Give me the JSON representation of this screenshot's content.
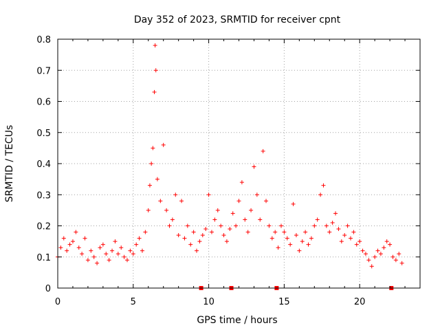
{
  "chart_data": {
    "type": "scatter",
    "title": "Day 352 of 2023, SRMTID for receiver cpnt",
    "xlabel": "GPS time / hours",
    "ylabel": "SRMTID / TECUs",
    "xlim": [
      0,
      24
    ],
    "ylim": [
      0,
      0.8
    ],
    "xticks": [
      "0",
      "5",
      "10",
      "15",
      "20"
    ],
    "xtick_values": [
      0,
      5,
      10,
      15,
      20
    ],
    "yticks": [
      "0",
      "0.1",
      "0.2",
      "0.3",
      "0.4",
      "0.5",
      "0.6",
      "0.7",
      "0.8"
    ],
    "ytick_values": [
      0,
      0.1,
      0.2,
      0.3,
      0.4,
      0.5,
      0.6,
      0.7,
      0.8
    ],
    "grid": true,
    "marker": "+",
    "color": "#ff0000",
    "series": [
      {
        "name": "SRMTID",
        "x": [
          0.0,
          0.2,
          0.4,
          0.6,
          0.8,
          1.0,
          1.2,
          1.4,
          1.6,
          1.8,
          2.0,
          2.2,
          2.4,
          2.6,
          2.8,
          3.0,
          3.2,
          3.4,
          3.6,
          3.8,
          4.0,
          4.2,
          4.4,
          4.6,
          4.8,
          5.0,
          5.2,
          5.4,
          5.6,
          5.8,
          6.0,
          6.1,
          6.2,
          6.3,
          6.4,
          6.45,
          6.5,
          6.6,
          6.8,
          7.0,
          7.2,
          7.4,
          7.6,
          7.8,
          8.0,
          8.2,
          8.4,
          8.6,
          8.8,
          9.0,
          9.2,
          9.4,
          9.6,
          9.8,
          10.0,
          10.2,
          10.4,
          10.6,
          10.8,
          11.0,
          11.2,
          11.4,
          11.6,
          11.8,
          12.0,
          12.2,
          12.4,
          12.6,
          12.8,
          13.0,
          13.2,
          13.4,
          13.6,
          13.8,
          14.0,
          14.2,
          14.4,
          14.6,
          14.8,
          15.0,
          15.2,
          15.4,
          15.6,
          15.8,
          16.0,
          16.2,
          16.4,
          16.6,
          16.8,
          17.0,
          17.2,
          17.4,
          17.6,
          17.8,
          18.0,
          18.2,
          18.4,
          18.6,
          18.8,
          19.0,
          19.2,
          19.4,
          19.6,
          19.8,
          20.0,
          20.2,
          20.4,
          20.6,
          20.8,
          21.0,
          21.2,
          21.4,
          21.6,
          21.8,
          22.0,
          22.2,
          22.4,
          22.6,
          22.8
        ],
        "y": [
          0.1,
          0.13,
          0.16,
          0.12,
          0.14,
          0.15,
          0.18,
          0.13,
          0.11,
          0.16,
          0.09,
          0.12,
          0.1,
          0.08,
          0.13,
          0.14,
          0.11,
          0.09,
          0.12,
          0.15,
          0.11,
          0.13,
          0.1,
          0.09,
          0.12,
          0.11,
          0.14,
          0.16,
          0.12,
          0.18,
          0.25,
          0.33,
          0.4,
          0.45,
          0.63,
          0.78,
          0.7,
          0.35,
          0.28,
          0.46,
          0.25,
          0.2,
          0.22,
          0.3,
          0.17,
          0.28,
          0.16,
          0.2,
          0.14,
          0.18,
          0.12,
          0.15,
          0.17,
          0.19,
          0.3,
          0.18,
          0.22,
          0.25,
          0.2,
          0.17,
          0.15,
          0.19,
          0.24,
          0.2,
          0.28,
          0.34,
          0.22,
          0.18,
          0.25,
          0.39,
          0.3,
          0.22,
          0.44,
          0.28,
          0.2,
          0.16,
          0.18,
          0.13,
          0.2,
          0.18,
          0.16,
          0.14,
          0.27,
          0.17,
          0.12,
          0.15,
          0.18,
          0.14,
          0.16,
          0.2,
          0.22,
          0.3,
          0.33,
          0.2,
          0.18,
          0.21,
          0.24,
          0.19,
          0.15,
          0.17,
          0.2,
          0.16,
          0.18,
          0.14,
          0.15,
          0.12,
          0.11,
          0.09,
          0.07,
          0.1,
          0.12,
          0.11,
          0.13,
          0.15,
          0.14,
          0.1,
          0.09,
          0.11,
          0.08
        ]
      }
    ],
    "gap_markers_x": [
      9.5,
      11.5,
      14.5,
      22.1
    ]
  }
}
